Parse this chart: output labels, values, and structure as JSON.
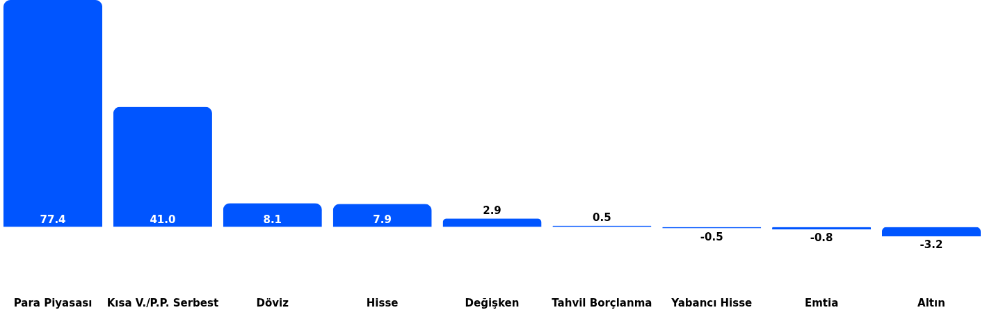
{
  "chart_data": {
    "type": "bar",
    "categories": [
      "Para Piyasası",
      "Kısa V./P.P. Serbest",
      "Döviz",
      "Hisse",
      "Değişken",
      "Tahvil Borçlanma",
      "Yabancı Hisse",
      "Emtia",
      "Altın"
    ],
    "values": [
      77.4,
      41.0,
      8.1,
      7.9,
      2.9,
      0.5,
      -0.5,
      -0.8,
      -3.2
    ],
    "value_labels": [
      "77.4",
      "41.0",
      "8.1",
      "7.9",
      "2.9",
      "0.5",
      "-0.5",
      "-0.8",
      "-3.2"
    ],
    "color": "#0055ff",
    "tick_labels": "x"
  }
}
